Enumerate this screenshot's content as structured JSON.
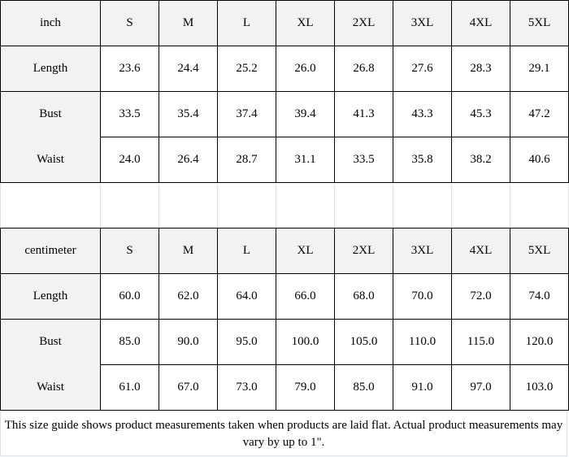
{
  "sizes": [
    "S",
    "M",
    "L",
    "XL",
    "2XL",
    "3XL",
    "4XL",
    "5XL"
  ],
  "tables": [
    {
      "unit": "inch",
      "rows": [
        {
          "label": "Length",
          "values": [
            "23.6",
            "24.4",
            "25.2",
            "26.0",
            "26.8",
            "27.6",
            "28.3",
            "29.1"
          ]
        },
        {
          "label": "Bust",
          "values": [
            "33.5",
            "35.4",
            "37.4",
            "39.4",
            "41.3",
            "43.3",
            "45.3",
            "47.2"
          ]
        },
        {
          "label": "Waist",
          "values": [
            "24.0",
            "26.4",
            "28.7",
            "31.1",
            "33.5",
            "35.8",
            "38.2",
            "40.6"
          ]
        }
      ]
    },
    {
      "unit": "centimeter",
      "rows": [
        {
          "label": "Length",
          "values": [
            "60.0",
            "62.0",
            "64.0",
            "66.0",
            "68.0",
            "70.0",
            "72.0",
            "74.0"
          ]
        },
        {
          "label": "Bust",
          "values": [
            "85.0",
            "90.0",
            "95.0",
            "100.0",
            "105.0",
            "110.0",
            "115.0",
            "120.0"
          ]
        },
        {
          "label": "Waist",
          "values": [
            "61.0",
            "67.0",
            "73.0",
            "79.0",
            "85.0",
            "91.0",
            "97.0",
            "103.0"
          ]
        }
      ]
    }
  ],
  "note": "This size guide shows product measurements taken when products are laid flat. Actual product measurements may vary by up to 1\"."
}
